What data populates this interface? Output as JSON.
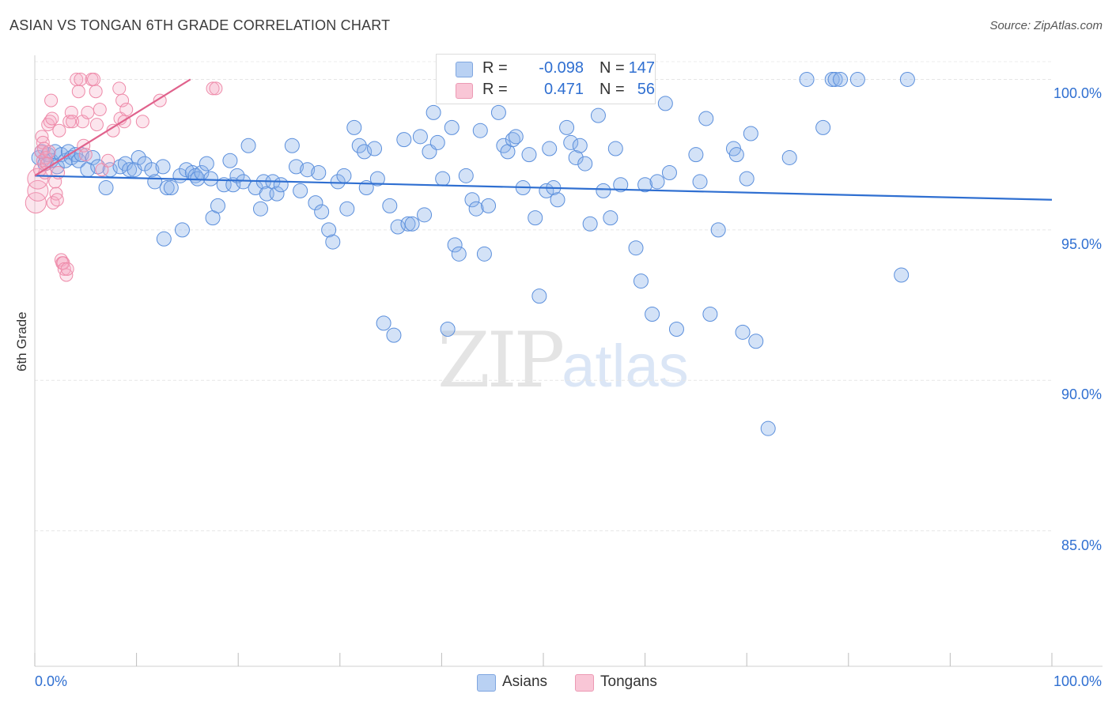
{
  "header": {
    "title": "ASIAN VS TONGAN 6TH GRADE CORRELATION CHART",
    "source": "Source: ZipAtlas.com"
  },
  "watermark": {
    "zip": "ZIP",
    "atlas": "atlas"
  },
  "legend": {
    "rows": [
      {
        "swatch_color": "#a9c6f0",
        "r_label": "R =",
        "r_value": "-0.098",
        "n_label": "N =",
        "n_value": "147"
      },
      {
        "swatch_color": "#f7b8cb",
        "r_label": "R =",
        "r_value": "0.471",
        "n_label": "N =",
        "n_value": "56"
      }
    ],
    "bottom": [
      {
        "label": "Asians",
        "color": "#a9c6f0"
      },
      {
        "label": "Tongans",
        "color": "#f7b8cb"
      }
    ]
  },
  "chart_data": {
    "type": "scatter",
    "title": "ASIAN VS TONGAN 6TH GRADE CORRELATION CHART",
    "xlabel": "",
    "ylabel": "6th Grade",
    "xlim": [
      0,
      100
    ],
    "ylim": [
      80.5,
      100.8
    ],
    "x_tick_labels": [
      "0.0%",
      "100.0%"
    ],
    "y_ticks": [
      {
        "value": 100,
        "label": "100.0%"
      },
      {
        "value": 95,
        "label": "95.0%"
      },
      {
        "value": 90,
        "label": "90.0%"
      },
      {
        "value": 85,
        "label": "85.0%"
      }
    ],
    "grid": true,
    "series": [
      {
        "name": "Asians",
        "color": "#5b8fdc",
        "fill": "rgba(140,178,235,0.38)",
        "trend": {
          "x": [
            0,
            100
          ],
          "y": [
            96.8,
            96.0
          ],
          "color": "#2f6fd1"
        },
        "points": [
          [
            0.4,
            97.4
          ],
          [
            0.7,
            97.6
          ],
          [
            1.0,
            97.2
          ],
          [
            1.3,
            97.5
          ],
          [
            1.6,
            97.3
          ],
          [
            2.0,
            97.6
          ],
          [
            2.2,
            97.1
          ],
          [
            2.6,
            97.5
          ],
          [
            3.0,
            97.3
          ],
          [
            3.3,
            97.6
          ],
          [
            3.6,
            97.4
          ],
          [
            4.0,
            97.5
          ],
          [
            4.3,
            97.3
          ],
          [
            4.6,
            97.5
          ],
          [
            5.2,
            97.0
          ],
          [
            5.7,
            97.4
          ],
          [
            6.2,
            97.1
          ],
          [
            7.0,
            96.4
          ],
          [
            7.4,
            97.0
          ],
          [
            8.4,
            97.1
          ],
          [
            8.9,
            97.2
          ],
          [
            9.3,
            97.0
          ],
          [
            9.8,
            97.0
          ],
          [
            10.2,
            97.4
          ],
          [
            10.8,
            97.2
          ],
          [
            11.5,
            97.0
          ],
          [
            11.8,
            96.6
          ],
          [
            12.6,
            97.1
          ],
          [
            12.7,
            94.7
          ],
          [
            13.0,
            96.4
          ],
          [
            13.4,
            96.4
          ],
          [
            14.3,
            96.8
          ],
          [
            14.5,
            95.0
          ],
          [
            14.9,
            97.0
          ],
          [
            15.5,
            96.9
          ],
          [
            15.8,
            96.8
          ],
          [
            16.0,
            96.7
          ],
          [
            16.4,
            96.9
          ],
          [
            16.9,
            97.2
          ],
          [
            17.3,
            96.7
          ],
          [
            17.5,
            95.4
          ],
          [
            18.0,
            95.8
          ],
          [
            18.6,
            96.5
          ],
          [
            19.2,
            97.3
          ],
          [
            19.5,
            96.5
          ],
          [
            19.9,
            96.8
          ],
          [
            20.5,
            96.6
          ],
          [
            21.0,
            97.8
          ],
          [
            21.7,
            96.4
          ],
          [
            22.2,
            95.7
          ],
          [
            22.5,
            96.6
          ],
          [
            22.8,
            96.2
          ],
          [
            23.4,
            96.6
          ],
          [
            23.8,
            96.2
          ],
          [
            24.2,
            96.5
          ],
          [
            25.3,
            97.8
          ],
          [
            25.7,
            97.1
          ],
          [
            26.1,
            96.3
          ],
          [
            26.8,
            97.0
          ],
          [
            27.6,
            95.9
          ],
          [
            27.9,
            96.9
          ],
          [
            28.2,
            95.6
          ],
          [
            28.9,
            95.0
          ],
          [
            29.3,
            94.6
          ],
          [
            29.8,
            96.6
          ],
          [
            30.4,
            96.8
          ],
          [
            30.7,
            95.7
          ],
          [
            31.4,
            98.4
          ],
          [
            31.9,
            97.8
          ],
          [
            32.4,
            97.6
          ],
          [
            32.6,
            96.4
          ],
          [
            33.4,
            97.7
          ],
          [
            33.7,
            96.7
          ],
          [
            34.3,
            91.9
          ],
          [
            34.9,
            95.8
          ],
          [
            35.3,
            91.5
          ],
          [
            35.7,
            95.1
          ],
          [
            36.3,
            98.0
          ],
          [
            36.7,
            95.2
          ],
          [
            37.1,
            95.2
          ],
          [
            37.9,
            98.1
          ],
          [
            38.3,
            95.5
          ],
          [
            38.8,
            97.6
          ],
          [
            39.2,
            98.9
          ],
          [
            39.6,
            97.9
          ],
          [
            40.1,
            96.7
          ],
          [
            40.6,
            91.7
          ],
          [
            41.0,
            98.4
          ],
          [
            41.3,
            94.5
          ],
          [
            41.7,
            94.2
          ],
          [
            42.4,
            96.8
          ],
          [
            43.0,
            96.0
          ],
          [
            43.4,
            95.7
          ],
          [
            43.8,
            98.3
          ],
          [
            44.2,
            94.2
          ],
          [
            44.6,
            95.8
          ],
          [
            45.6,
            98.9
          ],
          [
            46.1,
            97.8
          ],
          [
            46.5,
            97.6
          ],
          [
            47.0,
            98.0
          ],
          [
            47.3,
            98.1
          ],
          [
            48.0,
            96.4
          ],
          [
            48.6,
            97.5
          ],
          [
            49.2,
            95.4
          ],
          [
            49.6,
            92.8
          ],
          [
            50.3,
            96.3
          ],
          [
            50.6,
            97.7
          ],
          [
            51.0,
            96.4
          ],
          [
            51.4,
            96.0
          ],
          [
            52.3,
            98.4
          ],
          [
            52.7,
            97.9
          ],
          [
            53.2,
            97.4
          ],
          [
            53.6,
            97.8
          ],
          [
            54.1,
            97.2
          ],
          [
            54.6,
            95.2
          ],
          [
            55.4,
            98.8
          ],
          [
            55.9,
            96.3
          ],
          [
            56.6,
            95.4
          ],
          [
            57.1,
            97.7
          ],
          [
            57.6,
            96.5
          ],
          [
            59.1,
            94.4
          ],
          [
            59.6,
            93.3
          ],
          [
            60.0,
            96.5
          ],
          [
            60.7,
            92.2
          ],
          [
            61.2,
            96.6
          ],
          [
            62.0,
            99.2
          ],
          [
            62.4,
            96.9
          ],
          [
            63.1,
            91.7
          ],
          [
            65.0,
            97.5
          ],
          [
            65.4,
            96.6
          ],
          [
            66.0,
            98.7
          ],
          [
            66.4,
            92.2
          ],
          [
            67.2,
            95.0
          ],
          [
            68.7,
            97.7
          ],
          [
            69.0,
            97.5
          ],
          [
            69.6,
            91.6
          ],
          [
            70.0,
            96.7
          ],
          [
            70.4,
            98.2
          ],
          [
            70.9,
            91.3
          ],
          [
            72.1,
            88.4
          ],
          [
            74.2,
            97.4
          ],
          [
            75.9,
            100.0
          ],
          [
            77.5,
            98.4
          ],
          [
            78.4,
            100.0
          ],
          [
            78.7,
            100.0
          ],
          [
            79.2,
            100.0
          ],
          [
            80.9,
            100.0
          ],
          [
            85.8,
            100.0
          ],
          [
            85.2,
            93.5
          ]
        ]
      },
      {
        "name": "Tongans",
        "color": "#ee8aa9",
        "fill": "rgba(245,170,195,0.30)",
        "trend": {
          "x": [
            0,
            15.3
          ],
          "y": [
            96.8,
            100.0
          ],
          "color": "#e0628c"
        },
        "points": [
          [
            0.1,
            95.9
          ],
          [
            0.3,
            96.3
          ],
          [
            0.3,
            96.7
          ],
          [
            0.5,
            97.0
          ],
          [
            0.6,
            97.6
          ],
          [
            0.7,
            98.1
          ],
          [
            0.8,
            97.9
          ],
          [
            0.8,
            97.3
          ],
          [
            0.9,
            97.7
          ],
          [
            1.0,
            96.9
          ],
          [
            1.1,
            97.4
          ],
          [
            1.2,
            97.2
          ],
          [
            1.3,
            98.5
          ],
          [
            1.4,
            97.6
          ],
          [
            1.5,
            98.6
          ],
          [
            1.6,
            99.3
          ],
          [
            1.7,
            98.7
          ],
          [
            1.8,
            95.9
          ],
          [
            2.0,
            96.6
          ],
          [
            2.1,
            96.2
          ],
          [
            2.2,
            96.0
          ],
          [
            2.3,
            96.9
          ],
          [
            2.4,
            98.3
          ],
          [
            2.6,
            94.0
          ],
          [
            2.7,
            93.9
          ],
          [
            2.8,
            93.9
          ],
          [
            2.9,
            93.7
          ],
          [
            3.1,
            93.5
          ],
          [
            3.2,
            93.7
          ],
          [
            3.4,
            98.6
          ],
          [
            3.6,
            98.9
          ],
          [
            3.7,
            98.6
          ],
          [
            4.1,
            100.0
          ],
          [
            4.3,
            99.6
          ],
          [
            4.5,
            100.0
          ],
          [
            4.7,
            98.6
          ],
          [
            4.8,
            97.8
          ],
          [
            5.0,
            97.5
          ],
          [
            5.2,
            98.9
          ],
          [
            5.6,
            100.0
          ],
          [
            5.8,
            100.0
          ],
          [
            6.0,
            99.6
          ],
          [
            6.1,
            98.5
          ],
          [
            6.4,
            99.0
          ],
          [
            6.6,
            97.0
          ],
          [
            7.2,
            97.3
          ],
          [
            7.7,
            98.3
          ],
          [
            8.3,
            99.7
          ],
          [
            8.4,
            98.7
          ],
          [
            8.6,
            99.3
          ],
          [
            8.8,
            98.6
          ],
          [
            9.0,
            99.0
          ],
          [
            10.6,
            98.6
          ],
          [
            12.3,
            99.3
          ],
          [
            17.5,
            99.7
          ],
          [
            17.8,
            99.7
          ]
        ]
      }
    ]
  }
}
